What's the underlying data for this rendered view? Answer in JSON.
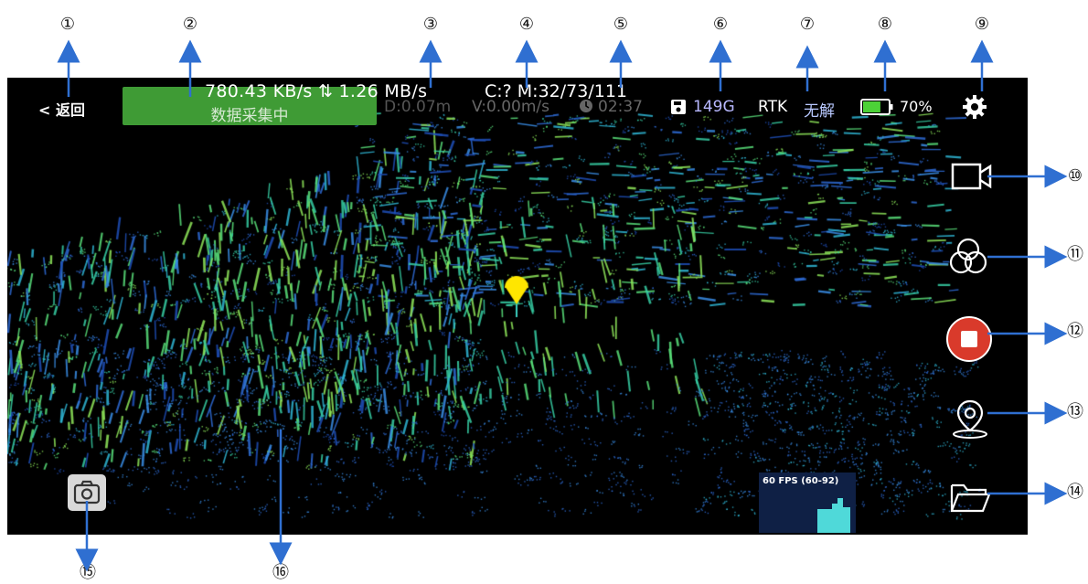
{
  "callouts": [
    "①",
    "②",
    "③",
    "④",
    "⑤",
    "⑥",
    "⑦",
    "⑧",
    "⑨",
    "⑩",
    "⑪",
    "⑫",
    "⑬",
    "⑭",
    "⑮",
    "⑯"
  ],
  "header": {
    "back_label": "< 返回",
    "status_label": "数据采集中",
    "data_rate": "780.43 KB/s ⇅ 1.26 MB/s",
    "counters": "C:? M:32/73/111",
    "distance": "D:0.07m",
    "velocity": "V:0.00m/s",
    "elapsed": "02:37",
    "storage": "149G",
    "rtk_label": "RTK",
    "rtk_state": "无解",
    "battery_percent": "70%",
    "battery_level": 0.7
  },
  "sidebar": {
    "buttons": [
      "video-camera-icon",
      "color-mode-icon",
      "stop-record-button",
      "location-pin-icon",
      "folder-icon"
    ]
  },
  "fps_panel": {
    "label": "60 FPS (60-92)"
  },
  "colors": {
    "status_green": "#3f9b35",
    "record_red": "#d93a2b",
    "fps_bar": "#4fd9d9",
    "marker": "#ffe600"
  }
}
